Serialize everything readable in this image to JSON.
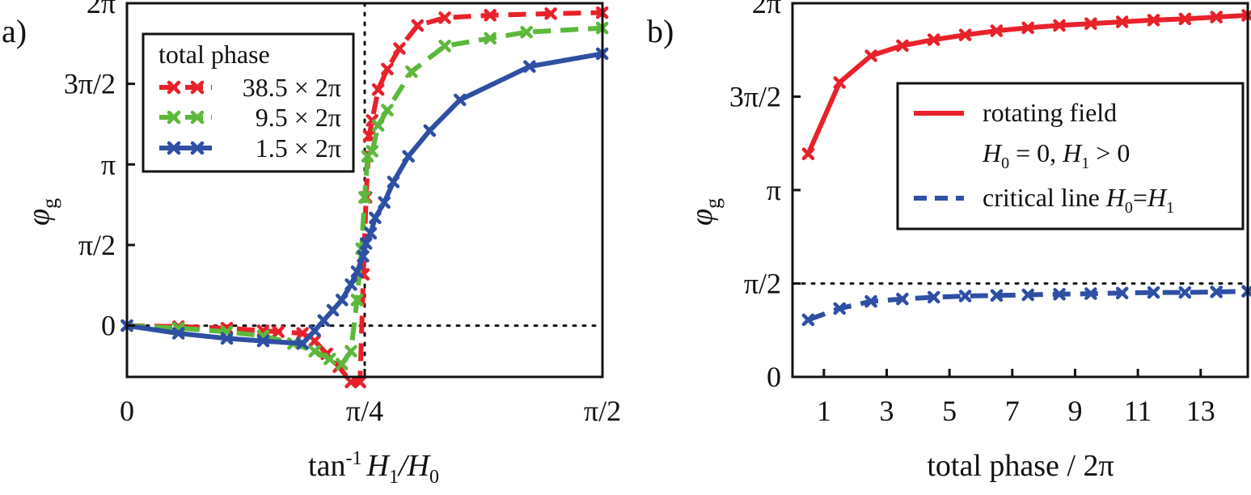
{
  "chart_data": [
    {
      "panel_label": "a)",
      "type": "line",
      "xlabel": "tan-1 H1/H0",
      "ylabel": "φg",
      "xlim": [
        0,
        1.5708
      ],
      "ylim": [
        -1.0,
        6.2832
      ],
      "x_ticks": [
        {
          "value": 0,
          "label": "0"
        },
        {
          "value": 0.7854,
          "label": "π/4"
        },
        {
          "value": 1.5708,
          "label": "π/2"
        }
      ],
      "y_ticks": [
        {
          "value": 0,
          "label": "0"
        },
        {
          "value": 1.5708,
          "label": "π/2"
        },
        {
          "value": 3.1416,
          "label": "π"
        },
        {
          "value": 4.7124,
          "label": "3π/2"
        },
        {
          "value": 6.2832,
          "label": "2π"
        }
      ],
      "reference_lines": {
        "h": [
          0,
          6.2832
        ],
        "v": [
          0.7854
        ]
      },
      "legend": {
        "title": "total phase",
        "placement": "top-left"
      },
      "series": [
        {
          "name": "38.5 × 2π",
          "color": "#e8212a",
          "dash": "dashed",
          "x": [
            0,
            0.17,
            0.33,
            0.45,
            0.5,
            0.58,
            0.62,
            0.66,
            0.7,
            0.74,
            0.77,
            0.781,
            0.79,
            0.8,
            0.81,
            0.83,
            0.86,
            0.9,
            0.96,
            1.05,
            1.2,
            1.4,
            1.57
          ],
          "y": [
            0,
            -0.02,
            -0.05,
            -0.1,
            -0.12,
            -0.15,
            -0.3,
            -0.55,
            -0.8,
            -1.1,
            -1.1,
            1.0,
            2.5,
            3.7,
            4.0,
            4.6,
            5.0,
            5.4,
            5.85,
            6.0,
            6.05,
            6.08,
            6.1
          ]
        },
        {
          "name": "9.5 × 2π",
          "color": "#5cb83a",
          "dash": "dashed",
          "x": [
            0,
            0.17,
            0.33,
            0.45,
            0.55,
            0.62,
            0.67,
            0.71,
            0.74,
            0.76,
            0.775,
            0.785,
            0.795,
            0.81,
            0.83,
            0.86,
            0.94,
            1.05,
            1.2,
            1.32,
            1.57
          ],
          "y": [
            0,
            -0.05,
            -0.12,
            -0.2,
            -0.35,
            -0.5,
            -0.65,
            -0.75,
            -0.5,
            0.5,
            1.5,
            2.5,
            3.3,
            3.4,
            3.9,
            4.2,
            4.95,
            5.45,
            5.6,
            5.72,
            5.8
          ]
        },
        {
          "name": "1.5 × 2π",
          "color": "#2e4fa3",
          "dash": "solid",
          "x": [
            0,
            0.17,
            0.33,
            0.45,
            0.58,
            0.62,
            0.65,
            0.68,
            0.71,
            0.74,
            0.76,
            0.78,
            0.79,
            0.805,
            0.82,
            0.85,
            0.88,
            0.93,
            1.0,
            1.1,
            1.33,
            1.57
          ],
          "y": [
            0,
            -0.15,
            -0.25,
            -0.3,
            -0.35,
            -0.1,
            0.1,
            0.3,
            0.5,
            0.8,
            1.05,
            1.35,
            1.6,
            1.8,
            2.1,
            2.4,
            2.8,
            3.3,
            3.8,
            4.4,
            5.05,
            5.3
          ]
        }
      ]
    },
    {
      "panel_label": "b)",
      "type": "line",
      "xlabel": "total phase / 2π",
      "ylabel": "φg",
      "xlim": [
        0,
        14.5
      ],
      "ylim": [
        0,
        6.2832
      ],
      "x_ticks": [
        {
          "value": 1,
          "label": "1"
        },
        {
          "value": 3,
          "label": "3"
        },
        {
          "value": 5,
          "label": "5"
        },
        {
          "value": 7,
          "label": "7"
        },
        {
          "value": 9,
          "label": "9"
        },
        {
          "value": 11,
          "label": "11"
        },
        {
          "value": 13,
          "label": "13"
        }
      ],
      "y_ticks": [
        {
          "value": 0,
          "label": "0"
        },
        {
          "value": 1.5708,
          "label": "π/2"
        },
        {
          "value": 3.1416,
          "label": "π"
        },
        {
          "value": 4.7124,
          "label": "3π/2"
        },
        {
          "value": 6.2832,
          "label": "2π"
        }
      ],
      "reference_lines": {
        "h": [
          1.5708,
          6.2832
        ],
        "v": []
      },
      "legend": {
        "placement": "right"
      },
      "series": [
        {
          "name": "rotating field",
          "name_line2": "H0 = 0, H1 > 0",
          "color": "#e8212a",
          "dash": "solid",
          "x": [
            0.5,
            1.5,
            2.5,
            3.5,
            4.5,
            5.5,
            6.5,
            7.5,
            8.5,
            9.5,
            10.5,
            11.5,
            12.5,
            13.5,
            14.5
          ],
          "y": [
            3.75,
            4.95,
            5.4,
            5.57,
            5.67,
            5.75,
            5.82,
            5.87,
            5.91,
            5.94,
            5.97,
            6.0,
            6.02,
            6.05,
            6.08
          ]
        },
        {
          "name": "critical line H0=H1",
          "color": "#2e4fa3",
          "dash": "dashed",
          "x": [
            0.5,
            1.5,
            2.5,
            3.5,
            4.5,
            5.5,
            6.5,
            7.5,
            8.5,
            9.5,
            10.5,
            11.5,
            12.5,
            13.5,
            14.5
          ],
          "y": [
            0.96,
            1.15,
            1.27,
            1.31,
            1.34,
            1.36,
            1.37,
            1.38,
            1.39,
            1.4,
            1.41,
            1.42,
            1.42,
            1.43,
            1.44
          ]
        }
      ]
    }
  ]
}
